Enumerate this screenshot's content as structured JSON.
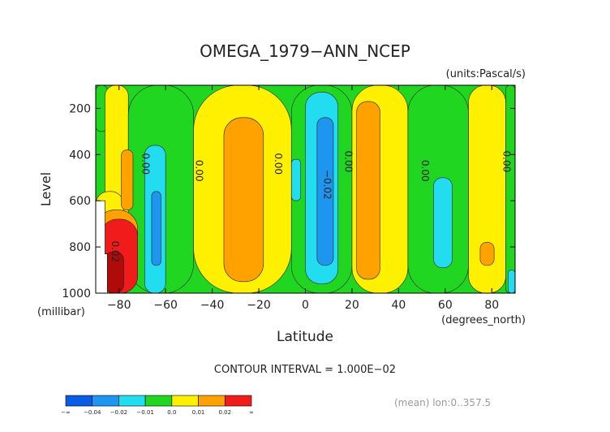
{
  "chart_data": {
    "type": "heatmap",
    "title": "OMEGA_1979−ANN_NCEP",
    "units_label": "(units:Pascal/s)",
    "xlabel": "Latitude",
    "ylabel": "Level",
    "x_unit_label": "(degrees_north)",
    "y_unit_label": "(millibar)",
    "xlim": [
      -90,
      90
    ],
    "ylim": [
      1000,
      100
    ],
    "x_ticks": [
      -80,
      -60,
      -40,
      -20,
      0,
      20,
      40,
      60,
      80
    ],
    "x_tick_labels": [
      "−80",
      "−60",
      "−40",
      "−20",
      "0",
      "20",
      "40",
      "60",
      "80"
    ],
    "y_ticks": [
      200,
      400,
      600,
      800,
      1000
    ],
    "y_tick_labels": [
      "200",
      "400",
      "600",
      "800",
      "1000"
    ],
    "contour_interval_text": "CONTOUR INTERVAL = 1.000E−02",
    "mean_text": "(mean) lon:0..357.5",
    "zero_contour_labels": [
      {
        "lat": -70,
        "level": 440,
        "text": "0.00"
      },
      {
        "lat": -47,
        "level": 470,
        "text": "0.00"
      },
      {
        "lat": -13,
        "level": 440,
        "text": "0.00"
      },
      {
        "lat": 17,
        "level": 430,
        "text": "0.00"
      },
      {
        "lat": 50,
        "level": 470,
        "text": "0.00"
      },
      {
        "lat": 85,
        "level": 430,
        "text": "0.00"
      }
    ],
    "negative_contour_labels": [
      {
        "lat": 8,
        "level": 530,
        "text": "−0.02"
      }
    ],
    "positive_contour_labels": [
      {
        "lat": -83,
        "level": 820,
        "text": "0.02"
      }
    ],
    "legend_colors": [
      "#0a5ce6",
      "#1e96f0",
      "#22dcf0",
      "#21d621",
      "#fff000",
      "#ffa200",
      "#f01c1c"
    ],
    "legend_labels": [
      "−∞",
      "−0.04",
      "−0.02",
      "−0.01",
      "0.0",
      "0.01",
      "0.02",
      "∞"
    ],
    "regions": [
      {
        "lat": [
          -90,
          -85
        ],
        "level": [
          100,
          300
        ],
        "fill": "#21d621"
      },
      {
        "lat": [
          -86,
          -76
        ],
        "level": [
          100,
          1000
        ],
        "fill": "#fff000"
      },
      {
        "lat": [
          -76,
          -48
        ],
        "level": [
          100,
          1000
        ],
        "fill": "#21d621"
      },
      {
        "lat": [
          -48,
          -6
        ],
        "level": [
          100,
          1000
        ],
        "fill": "#fff000"
      },
      {
        "lat": [
          -6,
          20
        ],
        "level": [
          100,
          1000
        ],
        "fill": "#21d621"
      },
      {
        "lat": [
          20,
          44
        ],
        "level": [
          100,
          1000
        ],
        "fill": "#fff000"
      },
      {
        "lat": [
          44,
          70
        ],
        "level": [
          100,
          1000
        ],
        "fill": "#21d621"
      },
      {
        "lat": [
          70,
          86
        ],
        "level": [
          100,
          1000
        ],
        "fill": "#fff000"
      },
      {
        "lat": [
          86,
          90
        ],
        "level": [
          100,
          1000
        ],
        "fill": "#21d621"
      },
      {
        "lat": [
          -90,
          -78
        ],
        "level": [
          560,
          1000
        ],
        "fill": "#fff000"
      },
      {
        "lat": [
          -90,
          -72
        ],
        "level": [
          640,
          1000
        ],
        "fill": "#ffa200"
      },
      {
        "lat": [
          -88,
          -72
        ],
        "level": [
          680,
          1000
        ],
        "fill": "#f01c1c"
      },
      {
        "lat": [
          -86,
          -78
        ],
        "level": [
          820,
          1000
        ],
        "fill": "#b00a0a"
      },
      {
        "lat": [
          -79,
          -74
        ],
        "level": [
          380,
          640
        ],
        "fill": "#ffa200"
      },
      {
        "lat": [
          -69,
          -60
        ],
        "level": [
          360,
          1000
        ],
        "fill": "#22dcf0"
      },
      {
        "lat": [
          -66,
          -62
        ],
        "level": [
          560,
          880
        ],
        "fill": "#1e96f0"
      },
      {
        "lat": [
          -35,
          -18
        ],
        "level": [
          240,
          950
        ],
        "fill": "#ffa200"
      },
      {
        "lat": [
          -6,
          -2
        ],
        "level": [
          420,
          600
        ],
        "fill": "#22dcf0"
      },
      {
        "lat": [
          0,
          14
        ],
        "level": [
          130,
          960
        ],
        "fill": "#22dcf0"
      },
      {
        "lat": [
          5,
          12
        ],
        "level": [
          240,
          880
        ],
        "fill": "#1e96f0"
      },
      {
        "lat": [
          22,
          32
        ],
        "level": [
          170,
          940
        ],
        "fill": "#ffa200"
      },
      {
        "lat": [
          55,
          63
        ],
        "level": [
          500,
          890
        ],
        "fill": "#22dcf0"
      },
      {
        "lat": [
          75,
          81
        ],
        "level": [
          780,
          880
        ],
        "fill": "#ffa200"
      },
      {
        "lat": [
          87,
          90
        ],
        "level": [
          900,
          1000
        ],
        "fill": "#22dcf0"
      }
    ]
  }
}
